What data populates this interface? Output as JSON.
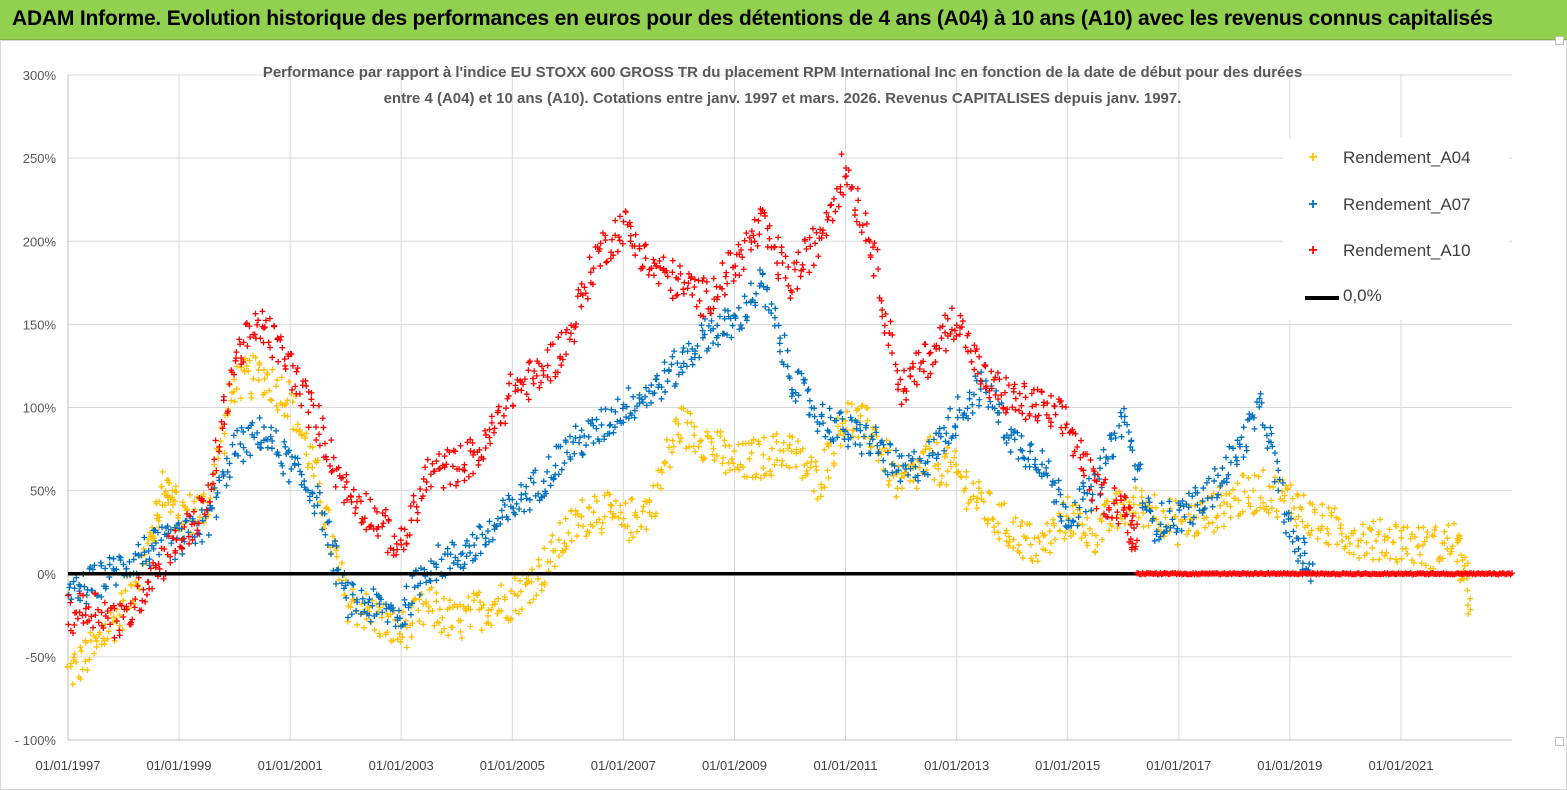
{
  "banner": {
    "title": "ADAM Informe. Evolution historique des performances en euros pour des détentions de 4 ans (A04) à 10 ans (A10) avec les revenus connus capitalisés"
  },
  "chart_data": {
    "type": "scatter",
    "title_lines": [
      "Performance par rapport à l'indice EU STOXX 600 GROSS TR  du placement RPM International Inc en fonction de la date de début pour des durées",
      "entre 4 (A04) et 10 ans (A10). Cotations entre janv. 1997 et mars. 2026. Revenus CAPITALISES depuis janv. 1997."
    ],
    "x_axis": {
      "type": "date",
      "min": "1997-01-01",
      "max": "2023-01-01",
      "tick_labels": [
        "01/01/1997",
        "01/01/1999",
        "01/01/2001",
        "01/01/2003",
        "01/01/2005",
        "01/01/2007",
        "01/01/2009",
        "01/01/2011",
        "01/01/2013",
        "01/01/2015",
        "01/01/2017",
        "01/01/2019",
        "01/01/2021"
      ]
    },
    "y_axis": {
      "min": -100,
      "max": 300,
      "unit": "%",
      "tick_values": [
        -100,
        -50,
        0,
        50,
        100,
        150,
        200,
        250,
        300
      ],
      "tick_labels": [
        "- 100%",
        "-50%",
        "0%",
        "50%",
        "100%",
        "150%",
        "200%",
        "250%",
        "300%"
      ]
    },
    "grid": {
      "horizontal": true,
      "vertical": true
    },
    "legend_position": "top-right",
    "series": [
      {
        "name": "Rendement_A04",
        "color": "#ffc000",
        "marker": "+",
        "x": [
          "1997-01-01",
          "1997-07-01",
          "1998-01-01",
          "1998-07-01",
          "1998-10-01",
          "1999-01-01",
          "1999-07-01",
          "2000-01-01",
          "2000-07-01",
          "2001-01-01",
          "2001-07-01",
          "2002-01-01",
          "2002-07-01",
          "2003-01-01",
          "2003-07-01",
          "2004-01-01",
          "2004-07-01",
          "2005-01-01",
          "2005-07-01",
          "2006-01-01",
          "2006-07-01",
          "2007-01-01",
          "2007-07-01",
          "2008-01-01",
          "2008-07-01",
          "2009-01-01",
          "2009-07-01",
          "2010-01-01",
          "2010-07-01",
          "2011-01-01",
          "2011-07-01",
          "2012-01-01",
          "2012-07-01",
          "2013-01-01",
          "2013-07-01",
          "2014-01-01",
          "2014-07-01",
          "2015-01-01",
          "2015-07-01",
          "2016-01-01",
          "2016-07-01",
          "2017-01-01",
          "2017-07-01",
          "2018-01-01",
          "2018-07-01",
          "2019-01-01",
          "2019-07-01",
          "2020-01-01",
          "2020-07-01",
          "2021-01-01",
          "2021-07-01",
          "2022-01-01",
          "2022-04-01"
        ],
        "y": [
          -60,
          -45,
          -20,
          20,
          55,
          35,
          40,
          115,
          120,
          105,
          55,
          -15,
          -25,
          -35,
          -20,
          -30,
          -20,
          -15,
          0,
          25,
          40,
          30,
          40,
          90,
          80,
          65,
          70,
          75,
          55,
          95,
          85,
          50,
          70,
          60,
          40,
          25,
          15,
          35,
          25,
          40,
          40,
          30,
          35,
          45,
          50,
          45,
          30,
          25,
          20,
          20,
          15,
          20,
          -15
        ]
      },
      {
        "name": "Rendement_A07",
        "color": "#0070c0",
        "marker": "+",
        "x": [
          "1997-01-01",
          "1997-07-01",
          "1998-01-01",
          "1998-07-01",
          "1999-01-01",
          "1999-07-01",
          "2000-01-01",
          "2000-07-01",
          "2001-01-01",
          "2001-07-01",
          "2002-01-01",
          "2002-07-01",
          "2003-01-01",
          "2003-07-01",
          "2004-01-01",
          "2004-07-01",
          "2005-01-01",
          "2005-07-01",
          "2006-01-01",
          "2006-07-01",
          "2007-01-01",
          "2007-07-01",
          "2008-01-01",
          "2008-07-01",
          "2009-01-01",
          "2009-07-01",
          "2010-01-01",
          "2010-07-01",
          "2011-01-01",
          "2011-07-01",
          "2012-01-01",
          "2012-07-01",
          "2013-01-01",
          "2013-07-01",
          "2014-01-01",
          "2014-07-01",
          "2015-01-01",
          "2015-07-01",
          "2016-01-01",
          "2016-07-01",
          "2017-01-01",
          "2017-07-01",
          "2018-01-01",
          "2018-07-01",
          "2019-01-01",
          "2019-06-01"
        ],
        "y": [
          -15,
          -5,
          5,
          15,
          20,
          30,
          75,
          85,
          65,
          45,
          -15,
          -20,
          -25,
          5,
          10,
          20,
          40,
          55,
          75,
          85,
          100,
          110,
          125,
          145,
          150,
          175,
          120,
          95,
          85,
          80,
          60,
          70,
          95,
          115,
          80,
          70,
          35,
          50,
          95,
          30,
          35,
          45,
          70,
          100,
          25,
          0
        ]
      },
      {
        "name": "Rendement_A10",
        "color": "#ff0000",
        "marker": "+",
        "x": [
          "1997-01-01",
          "1997-07-01",
          "1998-01-01",
          "1998-07-01",
          "1999-01-01",
          "1999-07-01",
          "2000-01-01",
          "2000-07-01",
          "2001-01-01",
          "2001-07-01",
          "2002-01-01",
          "2002-07-01",
          "2003-01-01",
          "2003-07-01",
          "2004-01-01",
          "2004-07-01",
          "2005-01-01",
          "2005-07-01",
          "2006-01-01",
          "2006-07-01",
          "2007-01-01",
          "2007-07-01",
          "2008-01-01",
          "2008-07-01",
          "2009-01-01",
          "2009-07-01",
          "2010-01-01",
          "2010-07-01",
          "2011-01-01",
          "2011-07-01",
          "2012-01-01",
          "2012-07-01",
          "2013-01-01",
          "2013-07-01",
          "2014-01-01",
          "2014-07-01",
          "2015-01-01",
          "2015-07-01",
          "2016-01-01",
          "2016-04-01"
        ],
        "y": [
          -25,
          -20,
          -30,
          0,
          20,
          40,
          130,
          150,
          125,
          90,
          50,
          35,
          15,
          60,
          65,
          75,
          110,
          120,
          140,
          190,
          210,
          185,
          175,
          165,
          185,
          210,
          175,
          200,
          245,
          195,
          110,
          130,
          155,
          115,
          105,
          100,
          90,
          50,
          40,
          20
        ]
      },
      {
        "name": "0,0%",
        "color": "#000000",
        "marker": "line",
        "x": [
          "1997-01-01",
          "2023-01-01"
        ],
        "y": [
          0,
          0
        ]
      }
    ]
  }
}
